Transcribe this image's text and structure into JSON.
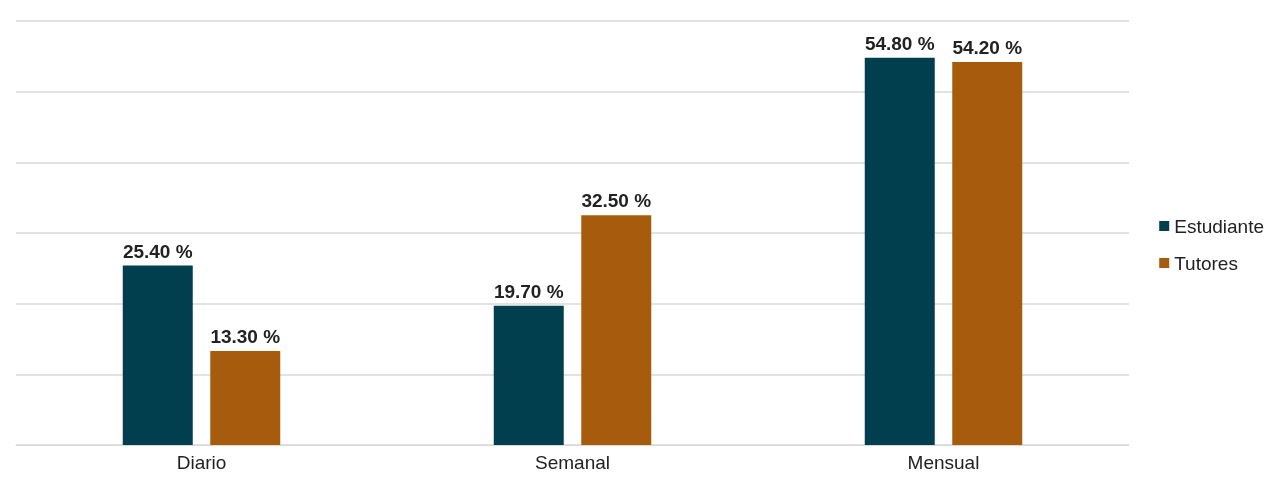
{
  "chart_data": {
    "type": "bar",
    "categories": [
      "Diario",
      "Semanal",
      "Mensual"
    ],
    "series": [
      {
        "name": "Estudiante",
        "color": "#023f4e",
        "values": [
          25.4,
          19.7,
          54.8
        ],
        "value_labels": [
          "25.40 %",
          "19.70 %",
          "54.80 %"
        ]
      },
      {
        "name": "Tutores",
        "color": "#a65c0c",
        "values": [
          13.3,
          32.5,
          54.2
        ],
        "value_labels": [
          "13.30 %",
          "32.50 %",
          "54.20 %"
        ]
      }
    ],
    "ylim": [
      0,
      60
    ],
    "yticks": [
      0,
      10,
      20,
      30,
      40,
      50,
      60
    ],
    "grid": "y",
    "tick_labels": "x",
    "legend": "right"
  }
}
